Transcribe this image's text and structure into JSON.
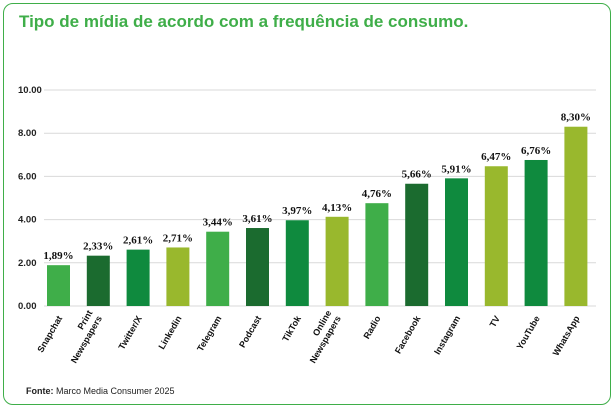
{
  "chart_data": {
    "type": "bar",
    "title": "Tipo de mídia de acordo com a frequência de consumo.",
    "xlabel": "",
    "ylabel": "",
    "ylim": [
      0,
      10
    ],
    "yticks": [
      "0.00",
      "2.00",
      "4.00",
      "6.00",
      "8.00",
      "10.00"
    ],
    "ytick_values": [
      0,
      2,
      4,
      6,
      8,
      10
    ],
    "grid": true,
    "categories": [
      [
        "Snapchat"
      ],
      [
        "Print",
        "Newspapers"
      ],
      [
        "Twitter/X"
      ],
      [
        "Linkedin"
      ],
      [
        "Telegram"
      ],
      [
        "Podcast"
      ],
      [
        "TikTok"
      ],
      [
        "Online",
        "Newspapers"
      ],
      [
        "Radio"
      ],
      [
        "Facebook"
      ],
      [
        "Instagram"
      ],
      [
        "TV"
      ],
      [
        "YouTube"
      ],
      [
        "WhatsApp"
      ]
    ],
    "values": [
      1.89,
      2.33,
      2.61,
      2.71,
      3.44,
      3.61,
      3.97,
      4.13,
      4.76,
      5.66,
      5.91,
      6.47,
      6.76,
      8.3
    ],
    "data_labels": [
      "1,89%",
      "2,33%",
      "2,61%",
      "2,71%",
      "3,44%",
      "3,61%",
      "3,97%",
      "4,13%",
      "4,76%",
      "5,66%",
      "5,91%",
      "6,47%",
      "6,76%",
      "8,30%"
    ],
    "bar_colors": [
      "#3fae49",
      "#1b6b2f",
      "#0f8a3e",
      "#99b82d",
      "#3fae49",
      "#1b6b2f",
      "#0f8a3e",
      "#99b82d",
      "#3fae49",
      "#1b6b2f",
      "#0f8a3e",
      "#99b82d",
      "#0f8a3e",
      "#99b82d"
    ]
  },
  "footer": {
    "source_label": "Fonte:",
    "source_text": " Marco Media Consumer 2025"
  },
  "colors": {
    "title": "#3fae49",
    "border": "#3fae49",
    "grid": "#d9d9d9"
  }
}
